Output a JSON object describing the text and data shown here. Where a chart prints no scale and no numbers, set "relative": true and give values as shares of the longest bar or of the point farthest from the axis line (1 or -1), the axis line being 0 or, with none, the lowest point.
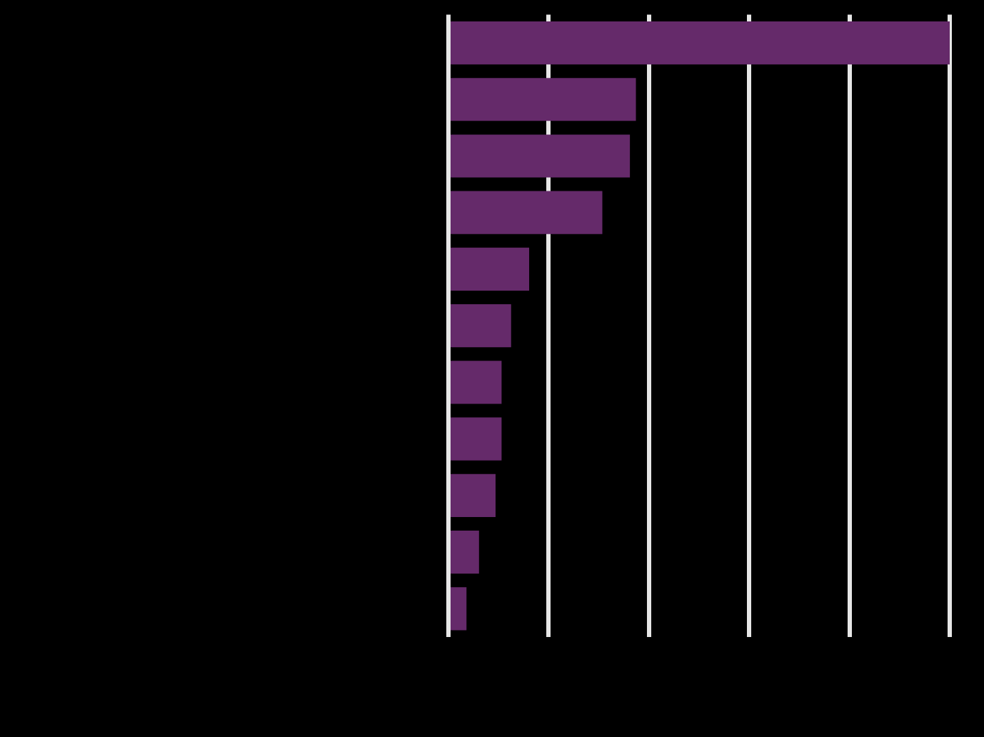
{
  "chart_data": {
    "type": "bar",
    "orientation": "horizontal",
    "relative": true,
    "grid": "x",
    "categories": [
      null,
      null,
      null,
      null,
      null,
      null,
      null,
      null,
      null,
      null,
      null
    ],
    "values": [
      1,
      0.374,
      0.362,
      0.307,
      0.161,
      0.125,
      0.106,
      0.106,
      0.094,
      0.061,
      0.036
    ],
    "color": "#652a6a"
  }
}
